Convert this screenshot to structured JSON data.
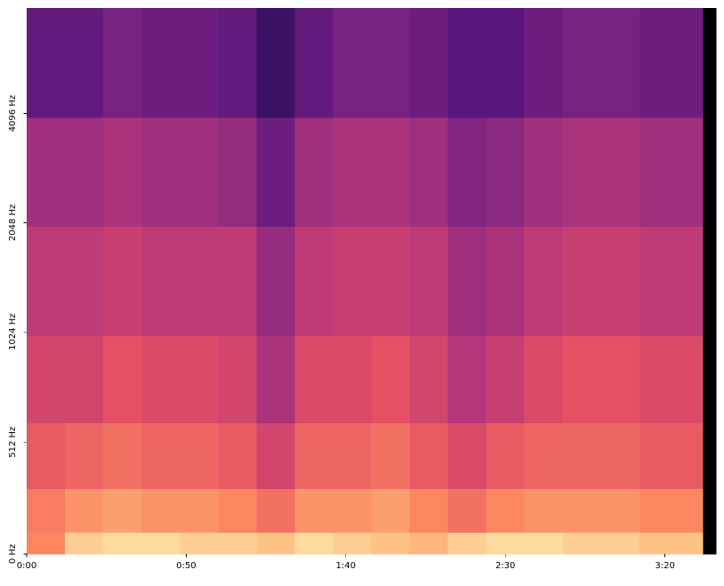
{
  "chart_data": {
    "type": "heatmap",
    "x_edges": [
      0,
      12,
      24,
      36,
      48,
      60,
      72,
      84,
      96,
      108,
      120,
      132,
      144,
      156,
      168,
      180,
      192,
      204,
      212,
      216
    ],
    "y_edges": [
      0,
      100,
      300,
      600,
      1000,
      2000,
      4000,
      8000
    ],
    "z": [
      [
        -20,
        -8,
        -6,
        -6,
        -8,
        -8,
        -10,
        -6,
        -8,
        -10,
        -12,
        -8,
        -6,
        -6,
        -8,
        -8,
        -10,
        -10,
        -80
      ],
      [
        -22,
        -18,
        -16,
        -18,
        -18,
        -20,
        -24,
        -18,
        -18,
        -16,
        -20,
        -24,
        -20,
        -18,
        -18,
        -18,
        -20,
        -20,
        -80
      ],
      [
        -28,
        -26,
        -24,
        -26,
        -26,
        -28,
        -34,
        -26,
        -26,
        -24,
        -28,
        -32,
        -28,
        -26,
        -26,
        -26,
        -28,
        -28,
        -80
      ],
      [
        -34,
        -34,
        -30,
        -32,
        -32,
        -34,
        -42,
        -32,
        -32,
        -30,
        -34,
        -40,
        -36,
        -32,
        -30,
        -30,
        -32,
        -32,
        -80
      ],
      [
        -38,
        -38,
        -36,
        -38,
        -38,
        -38,
        -46,
        -38,
        -36,
        -36,
        -38,
        -44,
        -42,
        -38,
        -36,
        -36,
        -38,
        -38,
        -80
      ],
      [
        -44,
        -44,
        -42,
        -44,
        -44,
        -46,
        -54,
        -44,
        -42,
        -42,
        -44,
        -50,
        -48,
        -44,
        -42,
        -42,
        -44,
        -44,
        -80
      ],
      [
        -56,
        -56,
        -52,
        -54,
        -54,
        -56,
        -64,
        -56,
        -52,
        -52,
        -54,
        -58,
        -58,
        -54,
        -52,
        -52,
        -54,
        -54,
        -80
      ]
    ],
    "zlim": [
      -80,
      0
    ],
    "colormap": [
      "#000004",
      "#1c1044",
      "#4f127b",
      "#812581",
      "#b5367a",
      "#e55064",
      "#fb8761",
      "#fec287",
      "#fcfdbf"
    ],
    "xlim": [
      0,
      216
    ],
    "xticks": [
      {
        "value": 0,
        "label": "0:00"
      },
      {
        "value": 50,
        "label": "0:50"
      },
      {
        "value": 100,
        "label": "1:40"
      },
      {
        "value": 150,
        "label": "2:30"
      },
      {
        "value": 200,
        "label": "3:20"
      }
    ],
    "ylim": [
      0,
      8000
    ],
    "yscale": "symlog",
    "linthresh": 1000,
    "linscale": 2,
    "logbase": 2,
    "yticks": [
      {
        "value": 0,
        "label": "0 Hz"
      },
      {
        "value": 512,
        "label": "512 Hz"
      },
      {
        "value": 1024,
        "label": "1024 Hz"
      },
      {
        "value": 2048,
        "label": "2048 Hz"
      },
      {
        "value": 4096,
        "label": "4096 Hz"
      }
    ]
  }
}
